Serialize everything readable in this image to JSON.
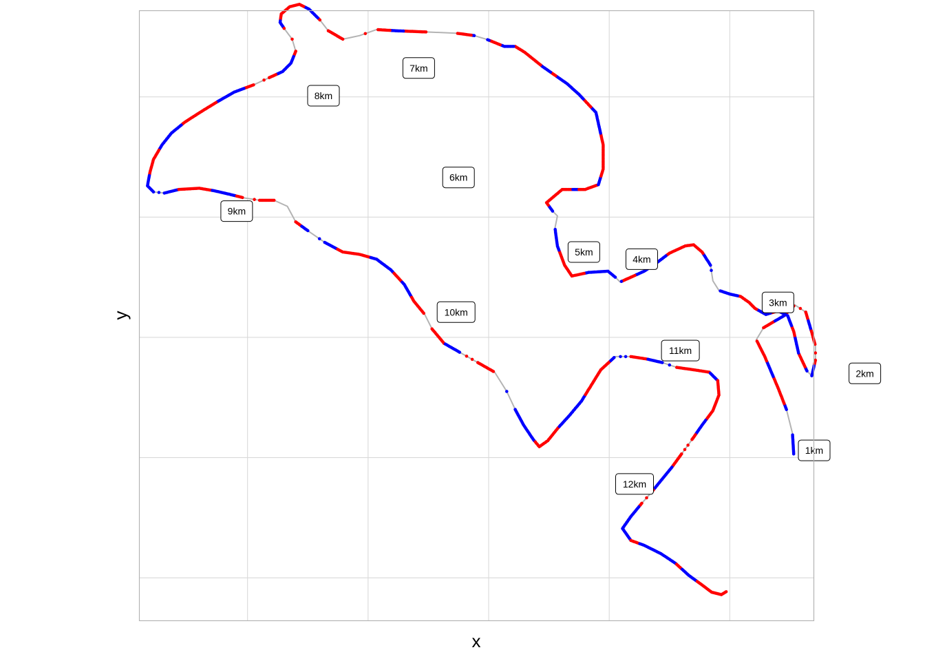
{
  "chart_data": {
    "type": "scatter",
    "title": "",
    "xlabel": "x",
    "ylabel": "y",
    "grid": true,
    "xlim": [
      -0.45,
      5.15
    ],
    "ylim": [
      -0.36,
      4.72
    ],
    "major_grid_x": [
      0.45,
      1.45,
      2.45,
      3.45,
      4.45
    ],
    "major_grid_y": [
      0,
      1,
      2,
      3,
      4
    ],
    "colors": {
      "red": "#ff0000",
      "blue": "#0000ff",
      "line": "#b3b3b3",
      "grid": "#d9d9d9",
      "border": "#b3b3b3"
    },
    "route": [
      [
        4.98,
        1.03
      ],
      [
        4.97,
        1.2
      ],
      [
        4.92,
        1.4
      ],
      [
        4.85,
        1.58
      ],
      [
        4.74,
        1.84
      ],
      [
        4.67,
        1.98
      ],
      [
        4.73,
        2.08
      ],
      [
        4.9,
        2.18
      ],
      [
        4.99,
        2.27
      ],
      [
        5.08,
        2.21
      ],
      [
        5.13,
        2.04
      ],
      [
        5.16,
        1.93
      ],
      [
        5.16,
        1.81
      ],
      [
        5.13,
        1.68
      ],
      [
        5.09,
        1.72
      ],
      [
        5.02,
        1.87
      ],
      [
        4.98,
        2.05
      ],
      [
        4.93,
        2.18
      ],
      [
        4.85,
        2.22
      ],
      [
        4.75,
        2.19
      ],
      [
        4.66,
        2.24
      ],
      [
        4.61,
        2.29
      ],
      [
        4.54,
        2.34
      ],
      [
        4.45,
        2.36
      ],
      [
        4.36,
        2.39
      ],
      [
        4.31,
        2.47
      ],
      [
        4.29,
        2.6
      ],
      [
        4.22,
        2.71
      ],
      [
        4.15,
        2.77
      ],
      [
        4.08,
        2.76
      ],
      [
        3.95,
        2.7
      ],
      [
        3.83,
        2.61
      ],
      [
        3.74,
        2.55
      ],
      [
        3.63,
        2.5
      ],
      [
        3.54,
        2.46
      ],
      [
        3.5,
        2.5
      ],
      [
        3.44,
        2.55
      ],
      [
        3.28,
        2.54
      ],
      [
        3.14,
        2.51
      ],
      [
        3.08,
        2.6
      ],
      [
        3.02,
        2.76
      ],
      [
        3.0,
        2.91
      ],
      [
        3.02,
        3.01
      ],
      [
        2.98,
        3.05
      ],
      [
        2.93,
        3.12
      ],
      [
        3.06,
        3.23
      ],
      [
        3.25,
        3.23
      ],
      [
        3.36,
        3.27
      ],
      [
        3.4,
        3.4
      ],
      [
        3.4,
        3.6
      ],
      [
        3.34,
        3.87
      ],
      [
        3.2,
        4.02
      ],
      [
        3.1,
        4.11
      ],
      [
        2.9,
        4.25
      ],
      [
        2.75,
        4.37
      ],
      [
        2.67,
        4.42
      ],
      [
        2.58,
        4.42
      ],
      [
        2.43,
        4.48
      ],
      [
        2.33,
        4.51
      ],
      [
        2.18,
        4.53
      ],
      [
        1.93,
        4.54
      ],
      [
        1.68,
        4.55
      ],
      [
        1.52,
        4.56
      ],
      [
        1.38,
        4.51
      ],
      [
        1.24,
        4.48
      ],
      [
        1.12,
        4.55
      ],
      [
        1.05,
        4.64
      ],
      [
        0.96,
        4.73
      ],
      [
        0.88,
        4.77
      ],
      [
        0.8,
        4.75
      ],
      [
        0.73,
        4.69
      ],
      [
        0.72,
        4.62
      ],
      [
        0.76,
        4.56
      ],
      [
        0.82,
        4.48
      ],
      [
        0.85,
        4.38
      ],
      [
        0.81,
        4.28
      ],
      [
        0.74,
        4.21
      ],
      [
        0.63,
        4.16
      ],
      [
        0.5,
        4.1
      ],
      [
        0.34,
        4.04
      ],
      [
        0.2,
        3.96
      ],
      [
        0.07,
        3.88
      ],
      [
        -0.07,
        3.79
      ],
      [
        -0.18,
        3.7
      ],
      [
        -0.26,
        3.6
      ],
      [
        -0.33,
        3.48
      ],
      [
        -0.36,
        3.37
      ],
      [
        -0.38,
        3.26
      ],
      [
        -0.33,
        3.21
      ],
      [
        -0.24,
        3.2
      ],
      [
        -0.12,
        3.23
      ],
      [
        0.05,
        3.24
      ],
      [
        0.17,
        3.22
      ],
      [
        0.3,
        3.19
      ],
      [
        0.42,
        3.16
      ],
      [
        0.55,
        3.14
      ],
      [
        0.67,
        3.14
      ],
      [
        0.78,
        3.09
      ],
      [
        0.85,
        2.96
      ],
      [
        0.96,
        2.88
      ],
      [
        1.09,
        2.79
      ],
      [
        1.24,
        2.71
      ],
      [
        1.38,
        2.69
      ],
      [
        1.52,
        2.65
      ],
      [
        1.64,
        2.56
      ],
      [
        1.75,
        2.44
      ],
      [
        1.83,
        2.3
      ],
      [
        1.92,
        2.19
      ],
      [
        1.98,
        2.07
      ],
      [
        2.08,
        1.95
      ],
      [
        2.22,
        1.87
      ],
      [
        2.36,
        1.79
      ],
      [
        2.5,
        1.71
      ],
      [
        2.6,
        1.55
      ],
      [
        2.67,
        1.4
      ],
      [
        2.74,
        1.27
      ],
      [
        2.82,
        1.15
      ],
      [
        2.87,
        1.09
      ],
      [
        2.94,
        1.14
      ],
      [
        3.02,
        1.24
      ],
      [
        3.12,
        1.35
      ],
      [
        3.22,
        1.47
      ],
      [
        3.3,
        1.6
      ],
      [
        3.38,
        1.73
      ],
      [
        3.5,
        1.84
      ],
      [
        3.63,
        1.84
      ],
      [
        3.76,
        1.82
      ],
      [
        3.89,
        1.79
      ],
      [
        4.01,
        1.75
      ],
      [
        4.15,
        1.73
      ],
      [
        4.28,
        1.71
      ],
      [
        4.35,
        1.64
      ],
      [
        4.36,
        1.52
      ],
      [
        4.31,
        1.39
      ],
      [
        4.22,
        1.27
      ],
      [
        4.13,
        1.14
      ],
      [
        4.05,
        1.03
      ],
      [
        3.97,
        0.92
      ],
      [
        3.88,
        0.81
      ],
      [
        3.8,
        0.71
      ],
      [
        3.72,
        0.62
      ],
      [
        3.63,
        0.51
      ],
      [
        3.56,
        0.41
      ],
      [
        3.63,
        0.31
      ],
      [
        3.74,
        0.27
      ],
      [
        3.88,
        0.2
      ],
      [
        4.0,
        0.12
      ],
      [
        4.11,
        0.02
      ],
      [
        4.22,
        -0.06
      ],
      [
        4.3,
        -0.12
      ],
      [
        4.38,
        -0.14
      ],
      [
        4.43,
        -0.11
      ]
    ],
    "km_labels": [
      {
        "text": "1km",
        "x": 5.15,
        "y": 1.06
      },
      {
        "text": "2km",
        "x": 5.57,
        "y": 1.7
      },
      {
        "text": "3km",
        "x": 4.85,
        "y": 2.29
      },
      {
        "text": "4km",
        "x": 3.72,
        "y": 2.65
      },
      {
        "text": "5km",
        "x": 3.24,
        "y": 2.71
      },
      {
        "text": "6km",
        "x": 2.2,
        "y": 3.33
      },
      {
        "text": "7km",
        "x": 1.87,
        "y": 4.24
      },
      {
        "text": "8km",
        "x": 1.08,
        "y": 4.01
      },
      {
        "text": "9km",
        "x": 0.36,
        "y": 3.05
      },
      {
        "text": "10km",
        "x": 2.18,
        "y": 2.21
      },
      {
        "text": "11km",
        "x": 4.04,
        "y": 1.89
      },
      {
        "text": "12km",
        "x": 3.66,
        "y": 0.78
      }
    ]
  }
}
